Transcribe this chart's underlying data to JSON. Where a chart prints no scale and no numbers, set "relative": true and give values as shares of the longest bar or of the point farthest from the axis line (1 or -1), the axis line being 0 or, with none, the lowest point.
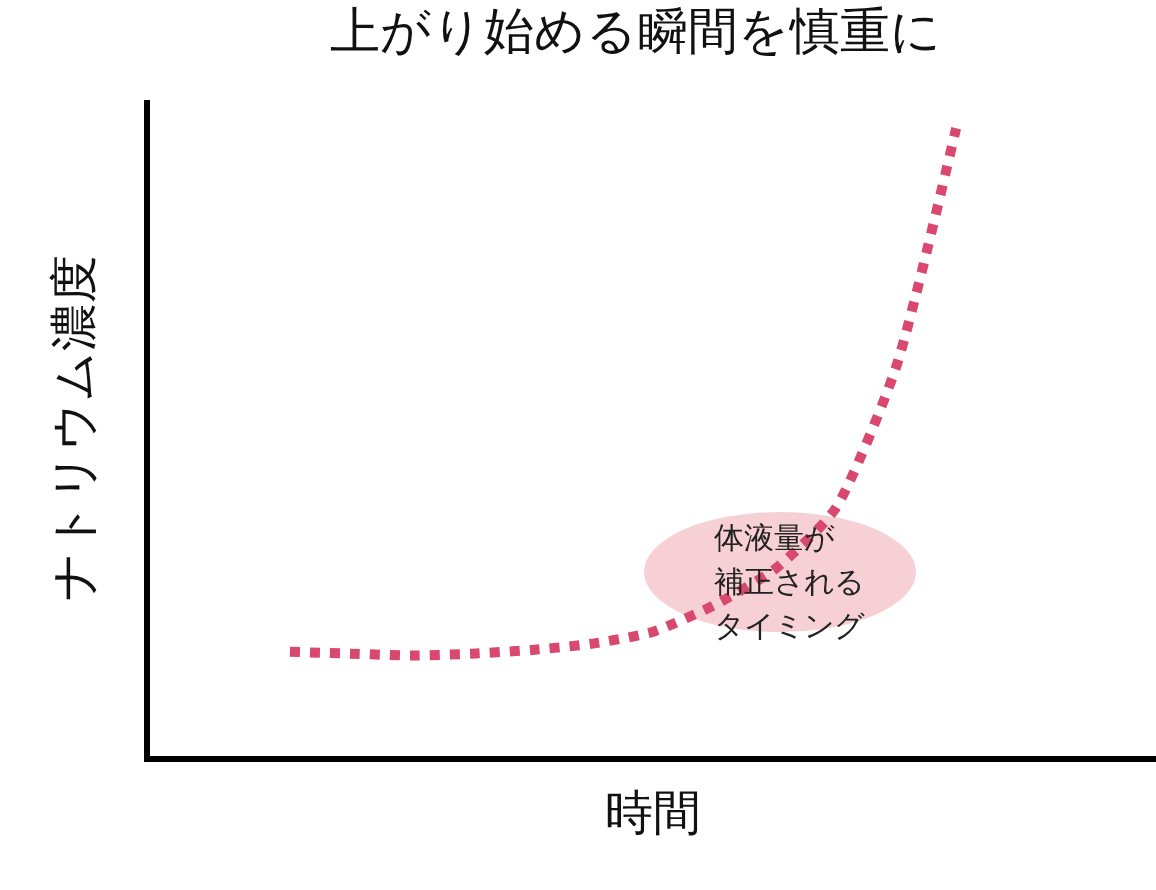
{
  "chart_data": {
    "type": "line",
    "title": "上がり始める瞬間を慎重に",
    "xlabel": "時間",
    "ylabel": "ナトリウム濃度",
    "relative": true,
    "categories": [
      null,
      null,
      null,
      null,
      null,
      null,
      null,
      null,
      null,
      null,
      null,
      null
    ],
    "series": [
      {
        "color": "#d9486e",
        "values": [
          0.166,
          0.163,
          0.16,
          0.163,
          0.169,
          0.179,
          0.198,
          0.24,
          0.297,
          0.393,
          0.617,
          1
        ]
      }
    ],
    "line_style": "dotted",
    "marker": "none",
    "grid": false,
    "annotations": [
      "体液量が",
      "補正される",
      "タイミング"
    ]
  }
}
